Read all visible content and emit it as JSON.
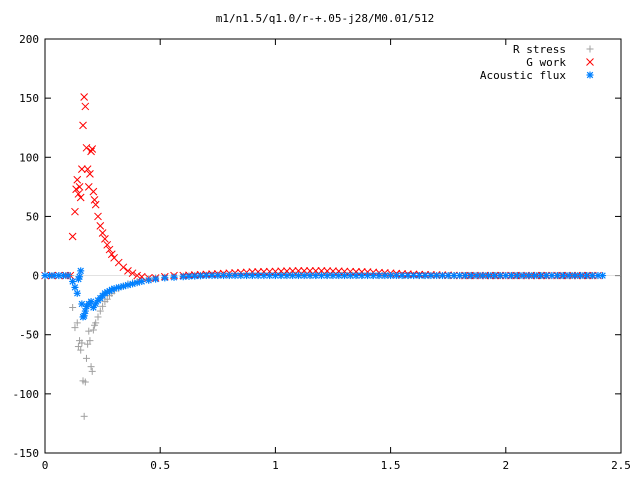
{
  "chart_data": {
    "type": "scatter",
    "title": "m1/n1.5/q1.0/r-+.05-j28/M0.01/512",
    "xlabel": "",
    "ylabel": "",
    "xlim": [
      0,
      2.5
    ],
    "ylim": [
      -150,
      200
    ],
    "x_ticks": [
      "0",
      "0.5",
      "1",
      "1.5",
      "2",
      "2.5"
    ],
    "y_ticks": [
      "200",
      "150",
      "100",
      "50",
      "0",
      "-50",
      "-100",
      "-150"
    ],
    "x_tick_values": [
      0,
      0.5,
      1,
      1.5,
      2,
      2.5
    ],
    "y_tick_values": [
      200,
      150,
      100,
      50,
      0,
      -50,
      -100,
      -150
    ],
    "grid": false,
    "legend_position": "top-right",
    "series": [
      {
        "name": "R stress",
        "marker": "plus",
        "color": "#a0a0a0",
        "points": [
          [
            0.0,
            0
          ],
          [
            0.03,
            0
          ],
          [
            0.06,
            0
          ],
          [
            0.09,
            0
          ],
          [
            0.11,
            0
          ],
          [
            0.12,
            -27
          ],
          [
            0.13,
            -44
          ],
          [
            0.14,
            -40
          ],
          [
            0.145,
            -60
          ],
          [
            0.15,
            -55
          ],
          [
            0.155,
            -63
          ],
          [
            0.16,
            -57
          ],
          [
            0.165,
            -89
          ],
          [
            0.17,
            -119
          ],
          [
            0.175,
            -90
          ],
          [
            0.18,
            -70
          ],
          [
            0.185,
            -58
          ],
          [
            0.19,
            -47
          ],
          [
            0.195,
            -55
          ],
          [
            0.2,
            -77
          ],
          [
            0.205,
            -81
          ],
          [
            0.21,
            -46
          ],
          [
            0.215,
            -42
          ],
          [
            0.22,
            -40
          ],
          [
            0.23,
            -35
          ],
          [
            0.24,
            -30
          ],
          [
            0.25,
            -26
          ],
          [
            0.26,
            -22
          ],
          [
            0.27,
            -20
          ],
          [
            0.28,
            -17
          ],
          [
            0.29,
            -15
          ],
          [
            0.3,
            -13
          ],
          [
            0.32,
            -11
          ],
          [
            0.34,
            -9
          ],
          [
            0.36,
            -7
          ],
          [
            0.38,
            -6
          ],
          [
            0.4,
            -5
          ],
          [
            0.42,
            -4
          ],
          [
            0.45,
            -3
          ],
          [
            0.48,
            -2
          ],
          [
            0.52,
            -1.5
          ],
          [
            0.56,
            -1
          ],
          [
            0.6,
            -0.5
          ],
          [
            0.65,
            0
          ],
          [
            0.7,
            0.3
          ],
          [
            0.8,
            0.5
          ],
          [
            0.9,
            0.5
          ],
          [
            1.0,
            0.5
          ],
          [
            1.2,
            0.3
          ],
          [
            1.4,
            0.2
          ],
          [
            1.6,
            0
          ],
          [
            1.8,
            0
          ],
          [
            2.0,
            0
          ],
          [
            2.2,
            0
          ],
          [
            2.4,
            0
          ]
        ]
      },
      {
        "name": "G work",
        "marker": "cross",
        "color": "#ff0000",
        "points": [
          [
            0.0,
            0
          ],
          [
            0.03,
            0
          ],
          [
            0.06,
            0
          ],
          [
            0.09,
            0
          ],
          [
            0.11,
            0
          ],
          [
            0.12,
            33
          ],
          [
            0.13,
            54
          ],
          [
            0.135,
            73
          ],
          [
            0.14,
            81
          ],
          [
            0.145,
            69
          ],
          [
            0.15,
            75
          ],
          [
            0.155,
            66
          ],
          [
            0.16,
            90
          ],
          [
            0.165,
            127
          ],
          [
            0.17,
            151
          ],
          [
            0.175,
            143
          ],
          [
            0.18,
            108
          ],
          [
            0.185,
            90
          ],
          [
            0.19,
            75
          ],
          [
            0.195,
            86
          ],
          [
            0.2,
            105
          ],
          [
            0.205,
            107
          ],
          [
            0.21,
            71
          ],
          [
            0.215,
            64
          ],
          [
            0.22,
            60
          ],
          [
            0.23,
            50
          ],
          [
            0.24,
            42
          ],
          [
            0.25,
            36
          ],
          [
            0.26,
            31
          ],
          [
            0.27,
            26
          ],
          [
            0.28,
            22
          ],
          [
            0.29,
            18
          ],
          [
            0.3,
            15
          ],
          [
            0.32,
            11
          ],
          [
            0.34,
            7
          ],
          [
            0.36,
            4
          ],
          [
            0.38,
            2
          ],
          [
            0.4,
            0
          ],
          [
            0.42,
            -1
          ],
          [
            0.45,
            -2
          ],
          [
            0.48,
            -2
          ],
          [
            0.52,
            -1
          ],
          [
            0.56,
            0
          ],
          [
            0.6,
            0
          ],
          [
            0.7,
            1
          ],
          [
            0.8,
            2
          ],
          [
            0.9,
            3
          ],
          [
            1.0,
            3.5
          ],
          [
            1.1,
            4
          ],
          [
            1.2,
            4
          ],
          [
            1.3,
            3.5
          ],
          [
            1.4,
            3
          ],
          [
            1.5,
            2
          ],
          [
            1.6,
            1
          ],
          [
            1.7,
            0.5
          ],
          [
            1.8,
            0
          ],
          [
            2.0,
            0
          ],
          [
            2.2,
            0
          ],
          [
            2.4,
            0
          ]
        ]
      },
      {
        "name": "Acoustic flux",
        "marker": "star",
        "color": "#0080ff",
        "points": [
          [
            0.0,
            0
          ],
          [
            0.02,
            0
          ],
          [
            0.04,
            0
          ],
          [
            0.06,
            0
          ],
          [
            0.08,
            0
          ],
          [
            0.1,
            0
          ],
          [
            0.12,
            -5
          ],
          [
            0.13,
            -10
          ],
          [
            0.14,
            -15
          ],
          [
            0.145,
            -3
          ],
          [
            0.15,
            -1
          ],
          [
            0.155,
            4
          ],
          [
            0.16,
            -24
          ],
          [
            0.165,
            -35
          ],
          [
            0.17,
            -34
          ],
          [
            0.175,
            -30
          ],
          [
            0.18,
            -26
          ],
          [
            0.19,
            -24
          ],
          [
            0.2,
            -22
          ],
          [
            0.21,
            -27
          ],
          [
            0.22,
            -24
          ],
          [
            0.23,
            -21
          ],
          [
            0.24,
            -19
          ],
          [
            0.25,
            -17
          ],
          [
            0.26,
            -15
          ],
          [
            0.27,
            -14
          ],
          [
            0.28,
            -13
          ],
          [
            0.29,
            -12
          ],
          [
            0.3,
            -11
          ],
          [
            0.32,
            -10
          ],
          [
            0.34,
            -9
          ],
          [
            0.36,
            -8
          ],
          [
            0.38,
            -7
          ],
          [
            0.4,
            -6
          ],
          [
            0.42,
            -5
          ],
          [
            0.45,
            -4
          ],
          [
            0.48,
            -3
          ],
          [
            0.52,
            -2
          ],
          [
            0.56,
            -1.5
          ],
          [
            0.6,
            -1
          ],
          [
            0.65,
            -0.5
          ],
          [
            0.7,
            0
          ],
          [
            0.8,
            0
          ],
          [
            0.9,
            0
          ],
          [
            1.0,
            0
          ],
          [
            1.1,
            0
          ],
          [
            1.2,
            0
          ],
          [
            1.3,
            0
          ],
          [
            1.4,
            0
          ],
          [
            1.5,
            0
          ],
          [
            1.6,
            0
          ],
          [
            1.7,
            0
          ],
          [
            1.8,
            0
          ],
          [
            1.9,
            0
          ],
          [
            2.0,
            0
          ],
          [
            2.1,
            0
          ],
          [
            2.2,
            0
          ],
          [
            2.3,
            0
          ],
          [
            2.4,
            0
          ],
          [
            2.42,
            0
          ]
        ]
      }
    ]
  }
}
